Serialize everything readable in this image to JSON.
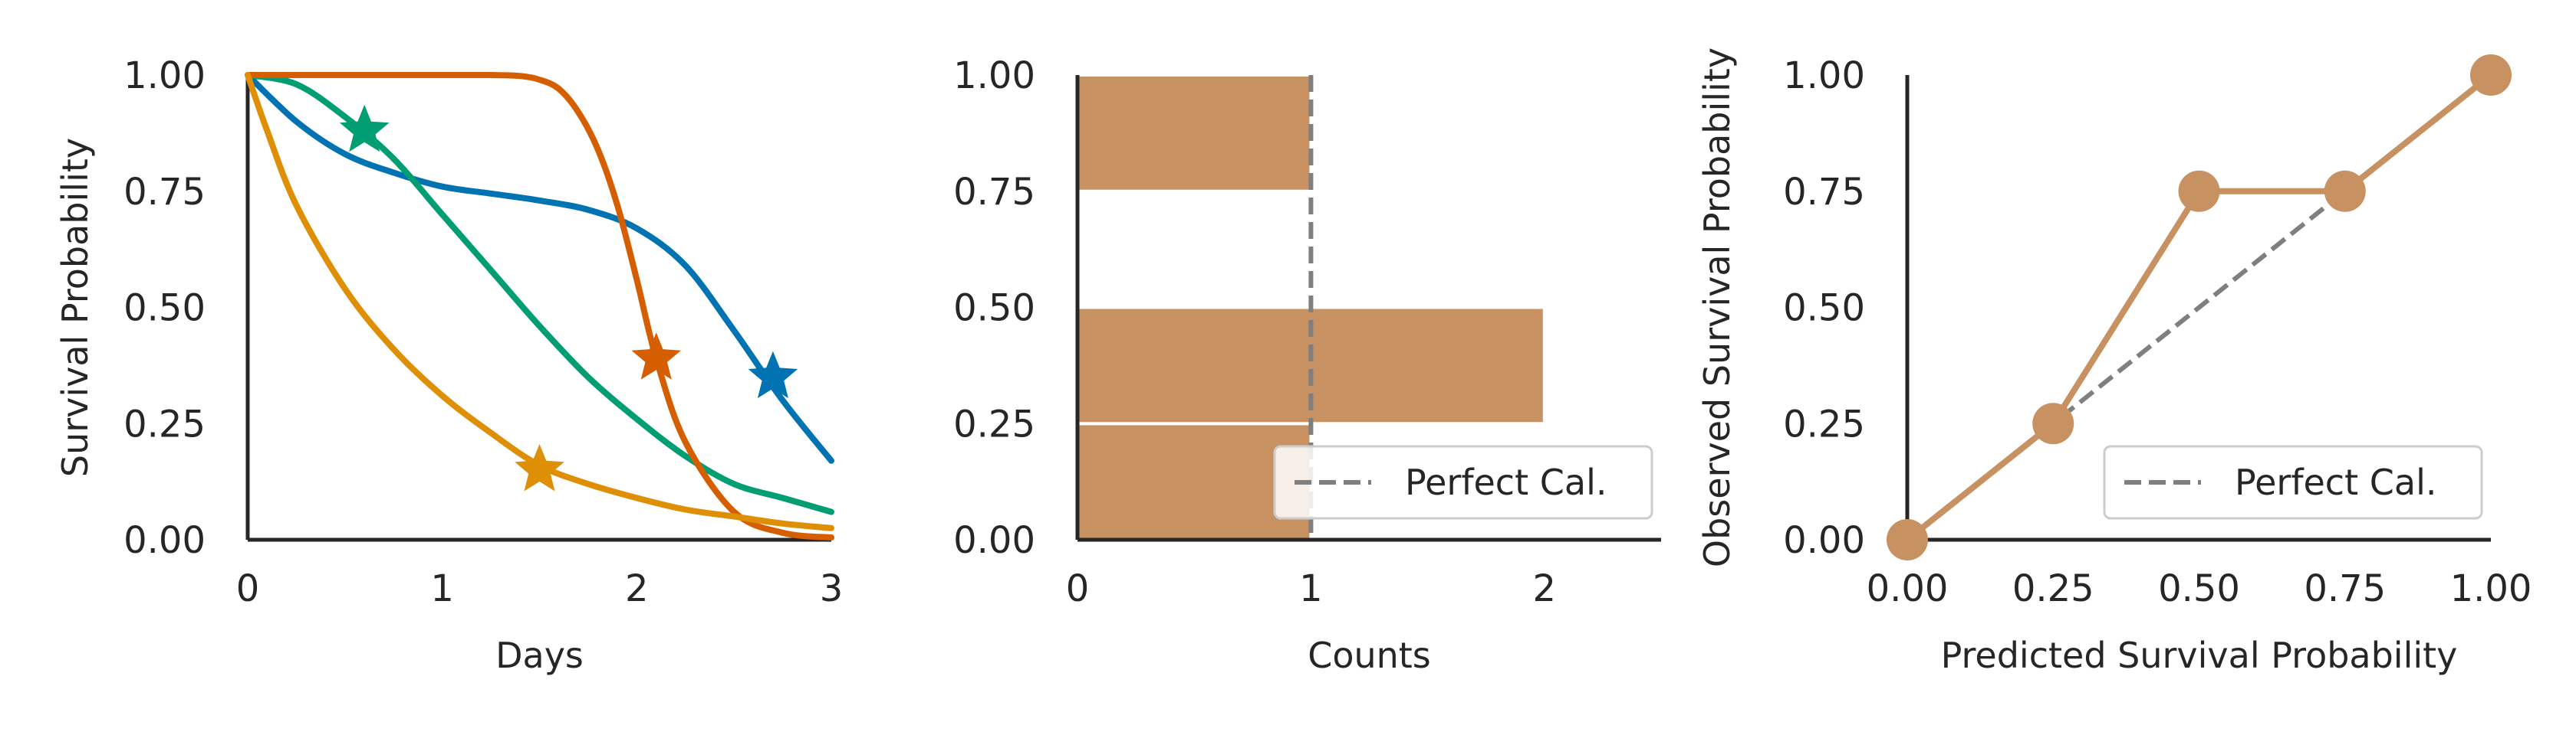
{
  "chart_data": [
    {
      "type": "line",
      "xlabel": "Days",
      "ylabel": "Survival Probability",
      "xlim": [
        0,
        3
      ],
      "ylim": [
        0,
        1
      ],
      "xticks": [
        "0",
        "1",
        "2",
        "3"
      ],
      "yticks": [
        "0.00",
        "0.25",
        "0.50",
        "0.75",
        "1.00"
      ],
      "grid": false,
      "series": [
        {
          "color": "#0173b2",
          "x": [
            0,
            0.25,
            0.5,
            0.75,
            1.0,
            1.25,
            1.5,
            1.75,
            2.0,
            2.25,
            2.5,
            2.75,
            3.0
          ],
          "y": [
            1.0,
            0.9,
            0.83,
            0.79,
            0.76,
            0.745,
            0.73,
            0.71,
            0.67,
            0.59,
            0.45,
            0.3,
            0.17
          ],
          "marker": {
            "x": 2.7,
            "y": 0.35
          }
        },
        {
          "color": "#029e73",
          "x": [
            0,
            0.25,
            0.5,
            0.75,
            1.0,
            1.25,
            1.5,
            1.75,
            2.0,
            2.25,
            2.5,
            2.75,
            3.0
          ],
          "y": [
            1.0,
            0.98,
            0.91,
            0.82,
            0.7,
            0.58,
            0.46,
            0.35,
            0.26,
            0.18,
            0.12,
            0.09,
            0.06
          ],
          "marker": {
            "x": 0.6,
            "y": 0.88
          }
        },
        {
          "color": "#d55e00",
          "x": [
            0,
            0.5,
            1.0,
            1.25,
            1.4,
            1.5,
            1.6,
            1.7,
            1.8,
            1.9,
            2.0,
            2.1,
            2.25,
            2.5,
            2.75,
            3.0
          ],
          "y": [
            1.0,
            1.0,
            1.0,
            1.0,
            0.998,
            0.99,
            0.97,
            0.92,
            0.84,
            0.72,
            0.56,
            0.39,
            0.21,
            0.06,
            0.015,
            0.005
          ],
          "marker": {
            "x": 2.1,
            "y": 0.39
          }
        },
        {
          "color": "#de8f05",
          "x": [
            0,
            0.1,
            0.25,
            0.5,
            0.75,
            1.0,
            1.25,
            1.5,
            1.75,
            2.0,
            2.25,
            2.5,
            2.75,
            3.0
          ],
          "y": [
            1.0,
            0.88,
            0.72,
            0.54,
            0.41,
            0.31,
            0.23,
            0.16,
            0.12,
            0.09,
            0.065,
            0.05,
            0.035,
            0.025
          ],
          "marker": {
            "x": 1.5,
            "y": 0.15
          }
        }
      ]
    },
    {
      "type": "bar",
      "orientation": "horizontal",
      "xlabel": "Counts",
      "ylabel": "",
      "xlim": [
        0,
        2.5
      ],
      "ylim": [
        0,
        1
      ],
      "xticks": [
        "0",
        "1",
        "2"
      ],
      "yticks": [
        "0.00",
        "0.25",
        "0.50",
        "0.75",
        "1.00"
      ],
      "bins": [
        [
          0,
          0.25
        ],
        [
          0.25,
          0.5
        ],
        [
          0.5,
          0.75
        ],
        [
          0.75,
          1.0
        ]
      ],
      "values": [
        1,
        2,
        0,
        1
      ],
      "bar_color": "#c89161",
      "reference_line": {
        "x": 1,
        "label": "Perfect Cal.",
        "color": "#7f7f7f"
      },
      "legend": {
        "placement": "bottom-right",
        "entries": [
          "Perfect Cal."
        ]
      }
    },
    {
      "type": "line",
      "xlabel": "Predicted Survival Probability",
      "ylabel": "Observed Survival Probability",
      "xlim": [
        0,
        1
      ],
      "ylim": [
        0,
        1
      ],
      "xticks": [
        "0.00",
        "0.25",
        "0.50",
        "0.75",
        "1.00"
      ],
      "yticks": [
        "0.00",
        "0.25",
        "0.50",
        "0.75",
        "1.00"
      ],
      "series": [
        {
          "color": "#c89161",
          "x": [
            0.0,
            0.25,
            0.5,
            0.75,
            1.0
          ],
          "y": [
            0.0,
            0.25,
            0.75,
            0.75,
            1.0
          ]
        }
      ],
      "reference_line": {
        "x": [
          0,
          0.75
        ],
        "y": [
          0,
          0.75
        ],
        "label": "Perfect Cal.",
        "color": "#7f7f7f"
      },
      "legend": {
        "placement": "bottom-right",
        "entries": [
          "Perfect Cal."
        ]
      }
    }
  ]
}
